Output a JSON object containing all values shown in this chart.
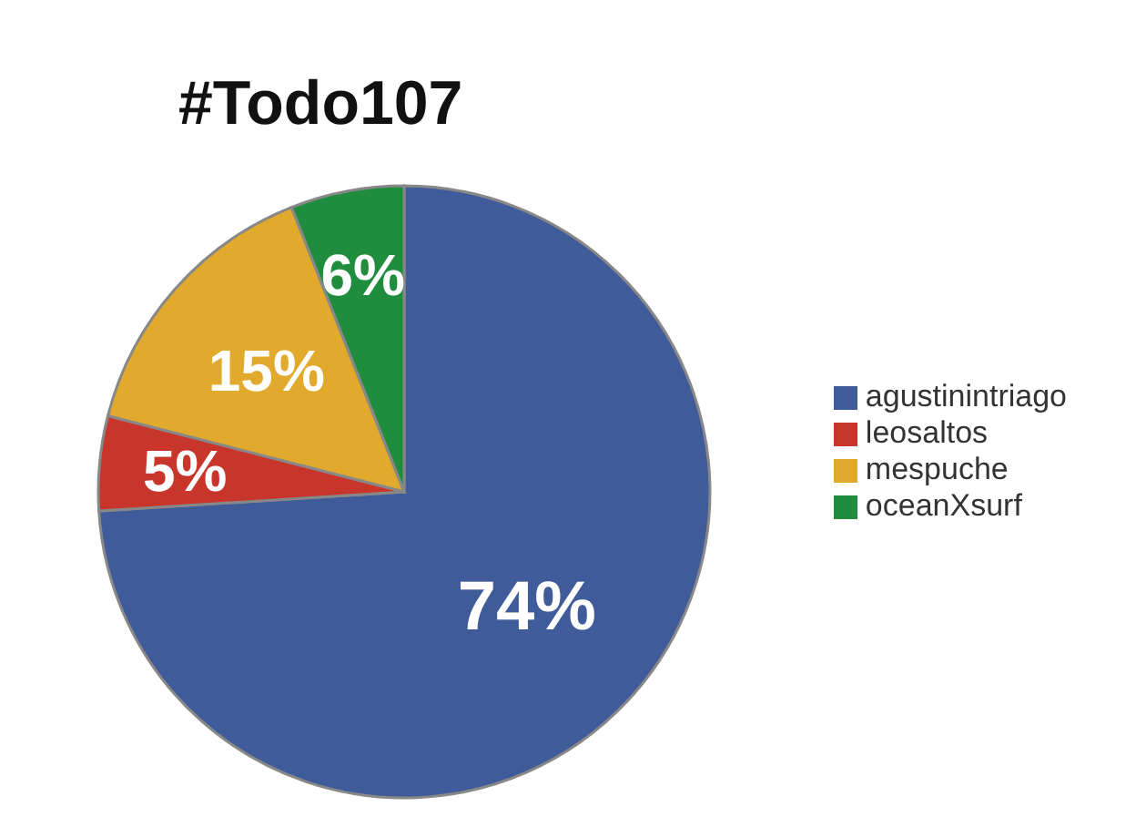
{
  "chart_data": {
    "type": "pie",
    "title": "#Todo107",
    "categories": [
      "agustinintriago",
      "leosaltos",
      "mespuche",
      "oceanXsurf"
    ],
    "values": [
      74,
      5,
      15,
      6
    ],
    "colors": [
      "#3f5b9a",
      "#c8352b",
      "#e2aa2c",
      "#1f8d3d"
    ],
    "value_labels": [
      "74%",
      "5%",
      "15%",
      "6%"
    ],
    "legend": "right"
  }
}
